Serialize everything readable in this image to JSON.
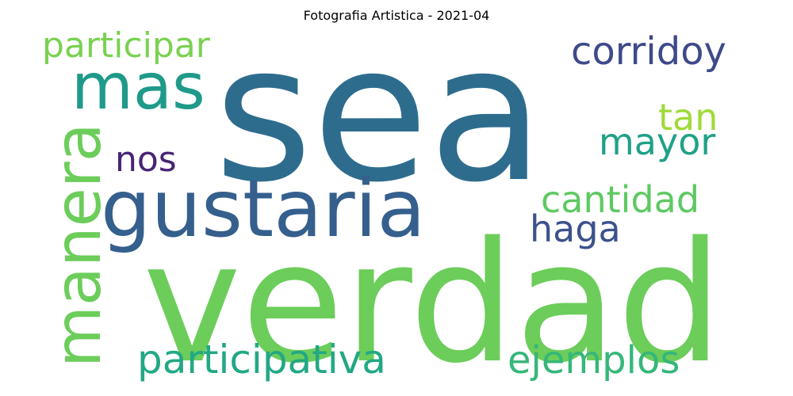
{
  "chart_data": {
    "type": "wordcloud",
    "title": "Fotografia Artistica  - 2021-04",
    "words": [
      {
        "text": "sea",
        "weight": 100,
        "color": "#2e6c8e"
      },
      {
        "text": "verdad",
        "weight": 98,
        "color": "#6ccd5a"
      },
      {
        "text": "gustaria",
        "weight": 48,
        "color": "#355f8d"
      },
      {
        "text": "manera",
        "weight": 38,
        "color": "#6ccd5a"
      },
      {
        "text": "mas",
        "weight": 36,
        "color": "#1f9a8a"
      },
      {
        "text": "participativa",
        "weight": 26,
        "color": "#22a884"
      },
      {
        "text": "ejemplos",
        "weight": 25,
        "color": "#35b779"
      },
      {
        "text": "corridoy",
        "weight": 25,
        "color": "#3e4a89"
      },
      {
        "text": "participar",
        "weight": 24,
        "color": "#7ad151"
      },
      {
        "text": "cantidad",
        "weight": 23,
        "color": "#5ec962"
      },
      {
        "text": "mayor",
        "weight": 23,
        "color": "#1fa187"
      },
      {
        "text": "tan",
        "weight": 23,
        "color": "#a0da39"
      },
      {
        "text": "haga",
        "weight": 23,
        "color": "#3b528b"
      },
      {
        "text": "nos",
        "weight": 20,
        "color": "#482475"
      }
    ]
  }
}
